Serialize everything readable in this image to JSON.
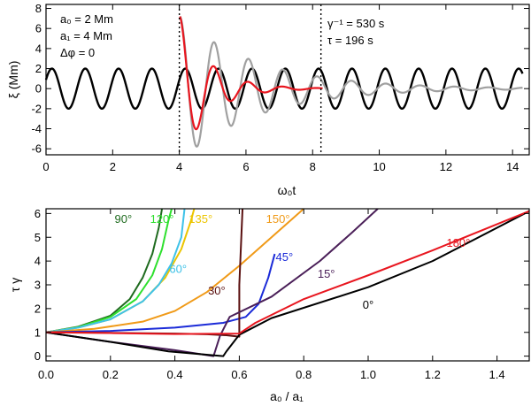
{
  "chart_data": [
    {
      "type": "line",
      "xlabel": "ω₀t",
      "ylabel": "ξ (Mm)",
      "xlim": [
        0,
        14.5
      ],
      "ylim": [
        -6.6,
        8.4
      ],
      "xticks": [
        0,
        2,
        4,
        6,
        8,
        10,
        12,
        14
      ],
      "yticks": [
        -6,
        -4,
        -2,
        0,
        2,
        4,
        6,
        8
      ],
      "annotations_left": [
        "a₀ = 2 Mm",
        "a₁ = 4 Mm",
        "Δφ = 0"
      ],
      "annotations_right": [
        "γ⁻¹ = 530 s",
        "τ = 196 s"
      ],
      "vlines": [
        4.0,
        8.25
      ],
      "series": [
        {
          "color": "#000000",
          "model": "driver",
          "amplitude": 2,
          "omega": 6.28,
          "phase0": 3.6,
          "x_range": [
            0,
            14.3
          ]
        },
        {
          "color": "#a0a0a0",
          "model": "damped",
          "amplitude": 7.2,
          "omega": 6.1,
          "decay": 0.43,
          "t0": 4.02,
          "x_range": [
            4.02,
            14.3
          ]
        },
        {
          "color": "#e8161f",
          "model": "damped",
          "amplitude": 7.2,
          "omega": 6.1,
          "decay": 1.15,
          "t0": 4.02,
          "x_range": [
            4.02,
            8.3
          ]
        }
      ]
    },
    {
      "type": "line",
      "xlabel": "a₀ / a₁",
      "ylabel": "τ γ",
      "xlim": [
        0,
        1.5
      ],
      "ylim": [
        -0.2,
        6.2
      ],
      "xticks": [
        0.0,
        0.2,
        0.4,
        0.6,
        0.8,
        1.0,
        1.2,
        1.4
      ],
      "yticks": [
        0,
        1,
        2,
        3,
        4,
        5,
        6
      ],
      "series": [
        {
          "name": "90°",
          "color": "#1f6b1f",
          "label_pos": [
            0.24,
            5.6
          ],
          "points": [
            [
              0,
              1
            ],
            [
              0.1,
              1.24
            ],
            [
              0.2,
              1.7
            ],
            [
              0.26,
              2.4
            ],
            [
              0.3,
              3.3
            ],
            [
              0.33,
              4.3
            ],
            [
              0.35,
              5.4
            ],
            [
              0.36,
              6.2
            ]
          ]
        },
        {
          "name": "120°",
          "color": "#2ee02e",
          "label_pos": [
            0.36,
            5.6
          ],
          "points": [
            [
              0,
              1
            ],
            [
              0.1,
              1.22
            ],
            [
              0.2,
              1.65
            ],
            [
              0.28,
              2.4
            ],
            [
              0.33,
              3.4
            ],
            [
              0.36,
              4.5
            ],
            [
              0.38,
              5.7
            ],
            [
              0.39,
              6.2
            ]
          ]
        },
        {
          "name": "135°",
          "color": "#ecc500",
          "label_pos": [
            0.48,
            5.6
          ],
          "points": [
            [
              0,
              1
            ],
            [
              0.1,
              1.2
            ],
            [
              0.2,
              1.55
            ],
            [
              0.3,
              2.3
            ],
            [
              0.37,
              3.3
            ],
            [
              0.42,
              4.5
            ],
            [
              0.45,
              5.7
            ],
            [
              0.46,
              6.2
            ]
          ]
        },
        {
          "name": "60°",
          "color": "#3fc2e8",
          "label_pos": [
            0.41,
            3.5
          ],
          "points": [
            [
              0,
              1
            ],
            [
              0.1,
              1.2
            ],
            [
              0.2,
              1.55
            ],
            [
              0.3,
              2.3
            ],
            [
              0.35,
              3.0
            ],
            [
              0.39,
              3.9
            ],
            [
              0.42,
              5.0
            ],
            [
              0.43,
              6.2
            ]
          ]
        },
        {
          "name": "150°",
          "color": "#f09a18",
          "label_pos": [
            0.72,
            5.6
          ],
          "points": [
            [
              0,
              1
            ],
            [
              0.15,
              1.15
            ],
            [
              0.3,
              1.45
            ],
            [
              0.4,
              1.9
            ],
            [
              0.5,
              2.7
            ],
            [
              0.6,
              3.8
            ],
            [
              0.7,
              5.0
            ],
            [
              0.8,
              6.2
            ]
          ]
        },
        {
          "name": "45°",
          "color": "#1b2bd8",
          "label_pos": [
            0.74,
            4.0
          ],
          "points": [
            [
              0,
              1
            ],
            [
              0.2,
              1.06
            ],
            [
              0.4,
              1.2
            ],
            [
              0.55,
              1.4
            ],
            [
              0.62,
              1.65
            ],
            [
              0.66,
              2.2
            ],
            [
              0.69,
              3.3
            ],
            [
              0.71,
              4.3
            ]
          ]
        },
        {
          "name": "30°",
          "color": "#5a1010",
          "label_pos": [
            0.53,
            2.6
          ],
          "points": [
            [
              0,
              1
            ],
            [
              0.2,
              0.98
            ],
            [
              0.4,
              0.95
            ],
            [
              0.5,
              0.92
            ],
            [
              0.56,
              0.88
            ],
            [
              0.6,
              0.82
            ],
            [
              0.6,
              3.0
            ],
            [
              0.61,
              6.2
            ]
          ]
        },
        {
          "name": "15°",
          "color": "#4a1f58",
          "label_pos": [
            0.87,
            3.3
          ],
          "points": [
            [
              0,
              1
            ],
            [
              0.2,
              0.6
            ],
            [
              0.4,
              0.25
            ],
            [
              0.52,
              0.0
            ],
            [
              0.54,
              0.85
            ],
            [
              0.57,
              1.65
            ],
            [
              0.7,
              2.5
            ],
            [
              0.85,
              4.0
            ],
            [
              0.95,
              5.2
            ],
            [
              1.03,
              6.2
            ]
          ]
        },
        {
          "name": "0°",
          "color": "#000000",
          "label_pos": [
            1.0,
            2.0
          ],
          "points": [
            [
              0,
              1
            ],
            [
              0.2,
              0.6
            ],
            [
              0.38,
              0.2
            ],
            [
              0.55,
              0.0
            ],
            [
              0.56,
              0.2
            ],
            [
              0.6,
              0.9
            ],
            [
              0.7,
              1.6
            ],
            [
              1.0,
              2.9
            ],
            [
              1.2,
              4.0
            ],
            [
              1.5,
              6.1
            ]
          ]
        },
        {
          "name": "180°",
          "color": "#e8161f",
          "label_pos": [
            1.28,
            4.6
          ],
          "points": [
            [
              0,
              1
            ],
            [
              0.2,
              0.97
            ],
            [
              0.4,
              0.93
            ],
            [
              0.6,
              0.95
            ],
            [
              0.65,
              1.4
            ],
            [
              0.8,
              2.4
            ],
            [
              1.0,
              3.4
            ],
            [
              1.2,
              4.45
            ],
            [
              1.5,
              6.1
            ]
          ]
        }
      ]
    }
  ]
}
